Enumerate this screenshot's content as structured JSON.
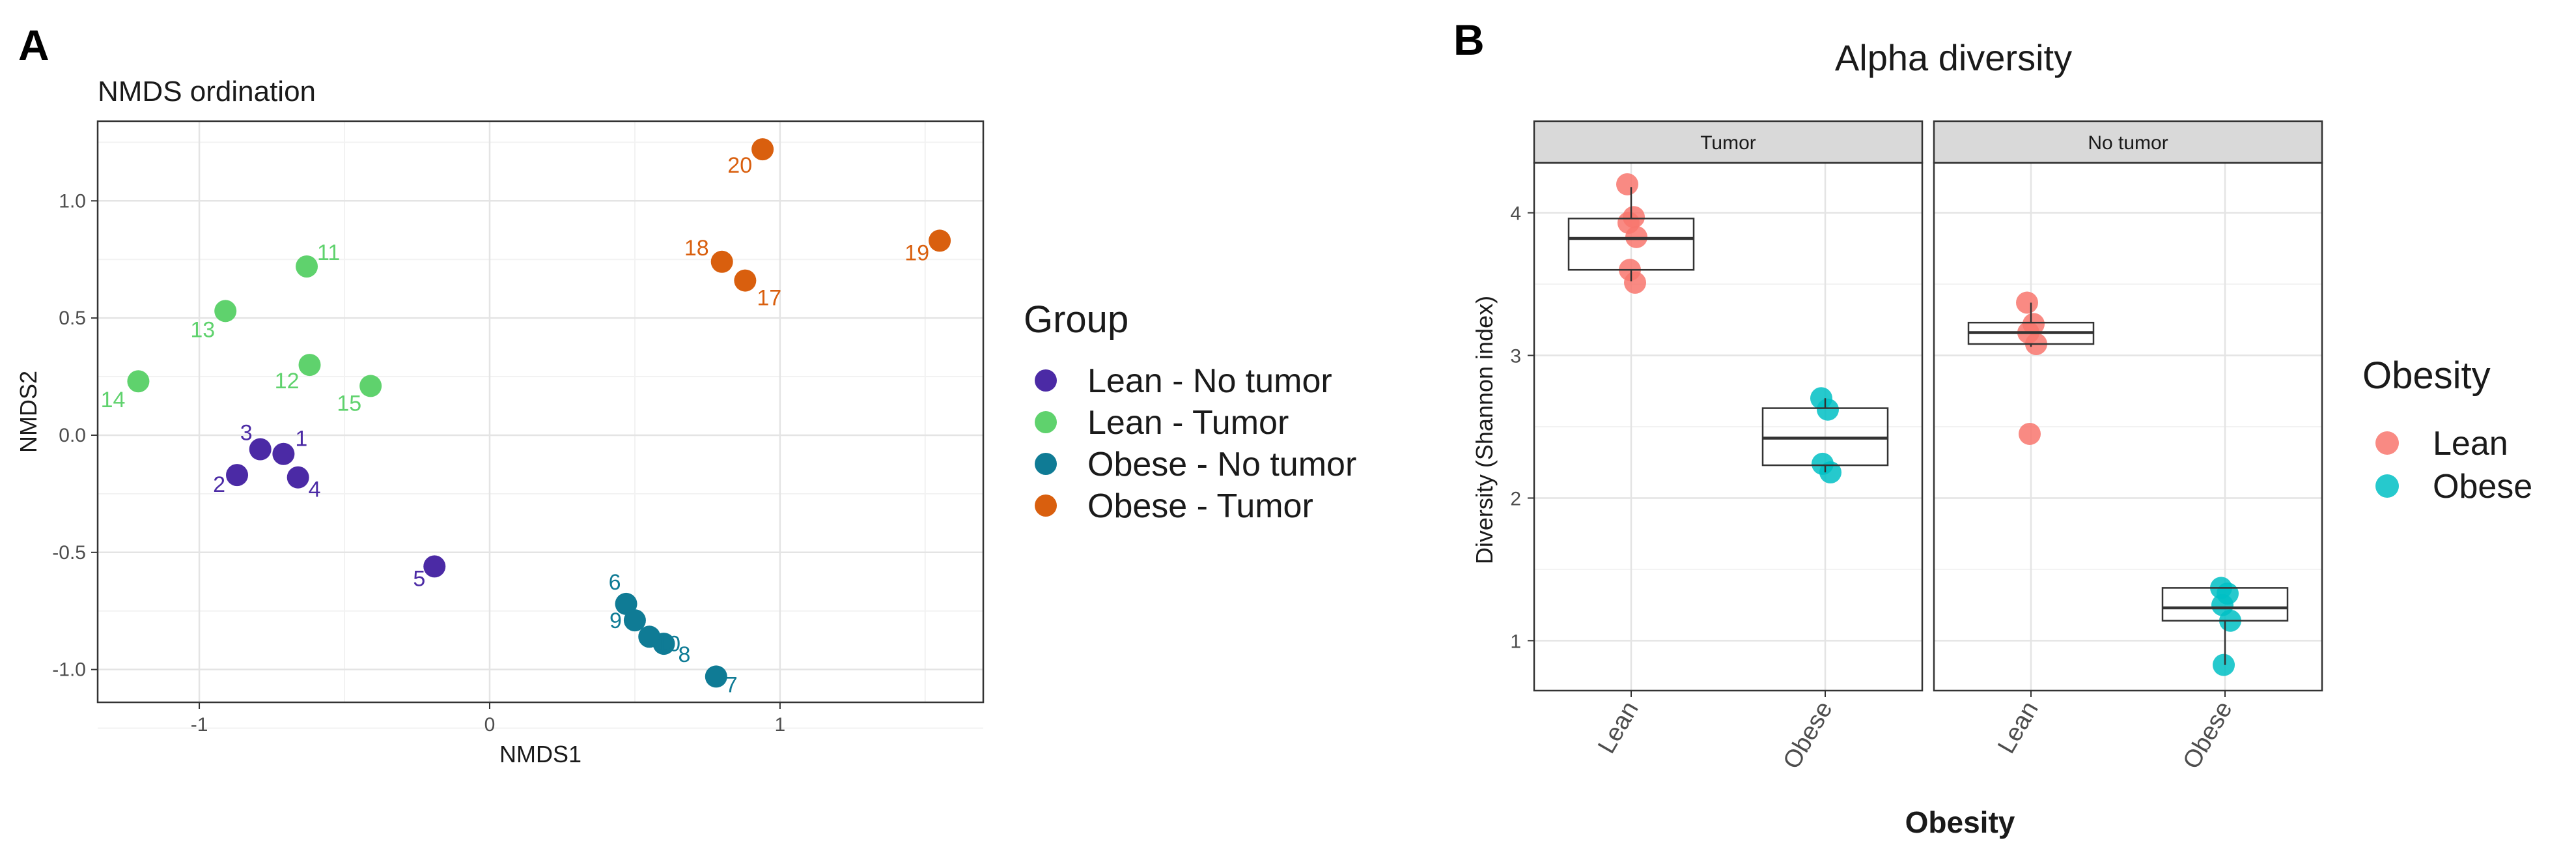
{
  "panel_labels": {
    "a": "A",
    "b": "B"
  },
  "chart_data": [
    {
      "type": "scatter",
      "title": "NMDS ordination",
      "xlabel": "NMDS1",
      "ylabel": "NMDS2",
      "xlim": [
        -1.35,
        1.7
      ],
      "ylim": [
        -1.14,
        1.34
      ],
      "xticks": [
        -1,
        0,
        1
      ],
      "xtick_labels": [
        "-1",
        "0",
        "1"
      ],
      "yticks": [
        1.0,
        0.5,
        0.0,
        -0.5,
        -1.0
      ],
      "ytick_labels": [
        "1.0",
        "0.5",
        "0.0",
        "-0.5",
        "-1.0"
      ],
      "grid": true,
      "legend": {
        "title": "Group",
        "placement": "right",
        "entries": [
          {
            "label": "Lean - No tumor",
            "color": "#4b2aa5"
          },
          {
            "label": "Lean - Tumor",
            "color": "#5fd26d"
          },
          {
            "label": "Obese - No tumor",
            "color": "#0f7b95"
          },
          {
            "label": "Obese - Tumor",
            "color": "#d95f0e"
          }
        ]
      },
      "series": [
        {
          "name": "Lean - No tumor",
          "color": "#4b2aa5",
          "points": [
            {
              "label": "1",
              "x": -0.71,
              "y": -0.08
            },
            {
              "label": "2",
              "x": -0.87,
              "y": -0.17
            },
            {
              "label": "3",
              "x": -0.79,
              "y": -0.06
            },
            {
              "label": "4",
              "x": -0.66,
              "y": -0.18
            },
            {
              "label": "5",
              "x": -0.19,
              "y": -0.56
            }
          ]
        },
        {
          "name": "Lean - Tumor",
          "color": "#5fd26d",
          "points": [
            {
              "label": "11",
              "x": -0.63,
              "y": 0.72
            },
            {
              "label": "12",
              "x": -0.62,
              "y": 0.3
            },
            {
              "label": "13",
              "x": -0.91,
              "y": 0.53
            },
            {
              "label": "14",
              "x": -1.21,
              "y": 0.23
            },
            {
              "label": "15",
              "x": -0.41,
              "y": 0.21
            }
          ]
        },
        {
          "name": "Obese - No tumor",
          "color": "#0f7b95",
          "points": [
            {
              "label": "6",
              "x": 0.47,
              "y": -0.72
            },
            {
              "label": "7",
              "x": 0.78,
              "y": -1.03
            },
            {
              "label": "8",
              "x": 0.6,
              "y": -0.89
            },
            {
              "label": "9",
              "x": 0.5,
              "y": -0.79
            },
            {
              "label": "10",
              "x": 0.55,
              "y": -0.86
            }
          ]
        },
        {
          "name": "Obese - Tumor",
          "color": "#d95f0e",
          "points": [
            {
              "label": "17",
              "x": 0.88,
              "y": 0.66
            },
            {
              "label": "18",
              "x": 0.8,
              "y": 0.74
            },
            {
              "label": "19",
              "x": 1.55,
              "y": 0.83
            },
            {
              "label": "20",
              "x": 0.94,
              "y": 1.22
            }
          ]
        }
      ]
    },
    {
      "type": "box",
      "title": "Alpha diversity",
      "xlabel": "Obesity",
      "ylabel": "Diversity (Shannon index)",
      "ylim": [
        0.65,
        4.35
      ],
      "yticks": [
        4,
        3,
        2,
        1
      ],
      "ytick_labels": [
        "4",
        "3",
        "2",
        "1"
      ],
      "grid": true,
      "facets": [
        "Tumor",
        "No tumor"
      ],
      "categories": [
        "Lean",
        "Obese"
      ],
      "legend": {
        "title": "Obesity",
        "placement": "right",
        "entries": [
          {
            "label": "Lean",
            "color": "#f8766d"
          },
          {
            "label": "Obese",
            "color": "#00bfc4"
          }
        ]
      },
      "boxes": [
        {
          "facet": "Tumor",
          "category": "Lean",
          "q1": 3.6,
          "median": 3.82,
          "q3": 3.96,
          "low": 3.52,
          "high": 4.18,
          "points": [
            4.2,
            3.97,
            3.93,
            3.83,
            3.6,
            3.51
          ]
        },
        {
          "facet": "Tumor",
          "category": "Obese",
          "q1": 2.23,
          "median": 2.42,
          "q3": 2.63,
          "low": 2.18,
          "high": 2.7,
          "points": [
            2.7,
            2.62,
            2.24,
            2.18
          ]
        },
        {
          "facet": "No tumor",
          "category": "Lean",
          "q1": 3.08,
          "median": 3.16,
          "q3": 3.23,
          "low": 3.06,
          "high": 3.37,
          "points": [
            3.37,
            3.22,
            3.16,
            3.08,
            2.45
          ]
        },
        {
          "facet": "No tumor",
          "category": "Obese",
          "q1": 1.14,
          "median": 1.23,
          "q3": 1.37,
          "low": 0.83,
          "high": 1.37,
          "points": [
            1.37,
            1.33,
            1.25,
            1.14,
            0.83
          ]
        }
      ]
    }
  ]
}
